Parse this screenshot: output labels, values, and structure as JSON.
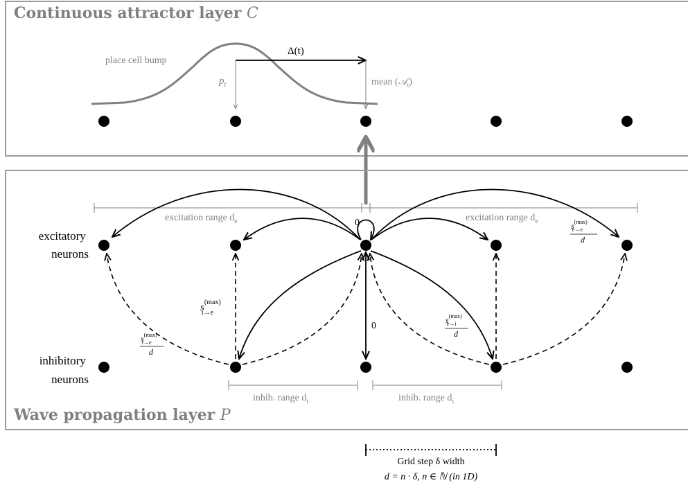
{
  "colors": {
    "gray": "#808080",
    "black": "#000000",
    "frame": "#9a9a9a"
  },
  "layer_c": {
    "title": "Continuous attractor layer",
    "title_var": "C",
    "bump_label": "place cell bump",
    "delta_label": "Δ(t)",
    "pt_label": "p",
    "pt_sub": "t",
    "mean_label": "mean (",
    "mean_var": "𝒜",
    "mean_sub": "t",
    "mean_close": ")"
  },
  "layer_p": {
    "title": "Wave propagation layer",
    "title_var": "P",
    "row_excitatory": [
      "excitatory",
      "neurons"
    ],
    "row_inhibitory": [
      "inhibitory",
      "neurons"
    ],
    "excitation_range_left": "excitation range d",
    "excitation_range_left_sub": "e",
    "excitation_range_right": "excitation range d",
    "excitation_range_right_sub": "e",
    "self_loop_label": "0",
    "vertical_label": "0",
    "inhib_range_left": "inhib. range d",
    "inhib_range_left_sub": "i",
    "inhib_range_right": "inhib. range d",
    "inhib_range_right_sub": "i",
    "s_ie_label": "s",
    "s_ie_sup": "(max)",
    "s_ie_sub": "i→e",
    "frac_ie_num": "s",
    "frac_ie_sup": "(max)",
    "frac_ie_sub": "i→e",
    "frac_ie_den": "d",
    "frac_ei_num": "s",
    "frac_ei_sup": "(max)",
    "frac_ei_sub": "e→i",
    "frac_ei_den": "d",
    "frac_ee_num": "s",
    "frac_ee_sup": "(max)",
    "frac_ee_sub": "e→e",
    "frac_ee_den": "d"
  },
  "grid_legend": {
    "line1": "Grid step δ width",
    "line2": "d = n · δ, n ∈ ℕ (in 1D)"
  }
}
